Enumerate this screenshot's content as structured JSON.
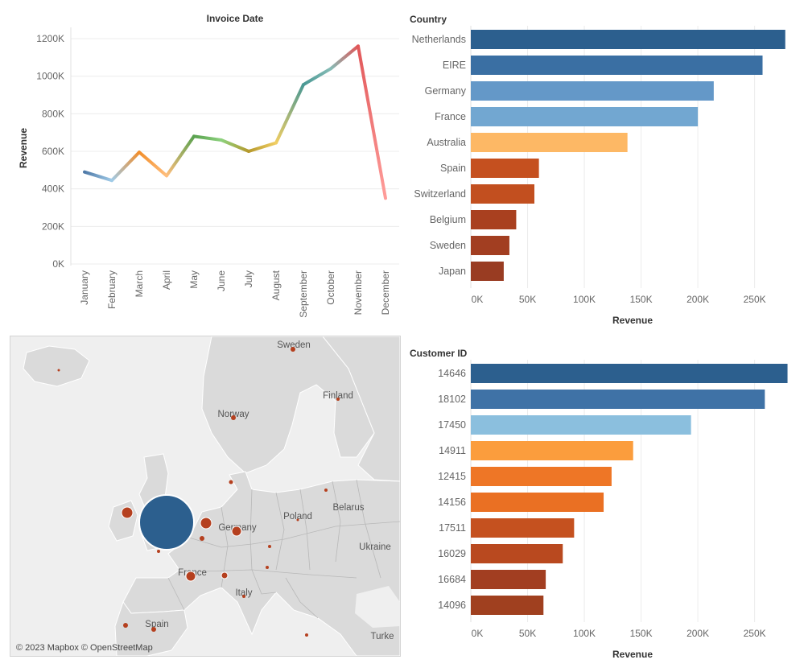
{
  "chart_data": [
    {
      "id": "revenue-by-month",
      "type": "line",
      "title": "Invoice Date",
      "xlabel": "",
      "ylabel": "Revenue",
      "categories": [
        "January",
        "February",
        "March",
        "April",
        "May",
        "June",
        "July",
        "August",
        "September",
        "October",
        "November",
        "December"
      ],
      "values": [
        490000,
        445000,
        595000,
        470000,
        680000,
        660000,
        600000,
        645000,
        955000,
        1040000,
        1160000,
        350000
      ],
      "segment_colors": [
        "#4e79a7",
        "#a0cbe8",
        "#f28e2b",
        "#ffbe7d",
        "#59a14f",
        "#8cd17d",
        "#b6992d",
        "#f1ce63",
        "#499894",
        "#86bcb6",
        "#e15759",
        "#ff9d9a"
      ],
      "ylim": [
        0,
        1200000
      ],
      "yticks": [
        0,
        200000,
        400000,
        600000,
        800000,
        1000000,
        1200000
      ],
      "ytick_labels": [
        "0K",
        "200K",
        "400K",
        "600K",
        "800K",
        "1000K",
        "1200K"
      ],
      "grid": true
    },
    {
      "id": "revenue-by-country",
      "type": "bar",
      "orientation": "horizontal",
      "title": "Country",
      "xlabel": "Revenue",
      "categories": [
        "Netherlands",
        "EIRE",
        "Germany",
        "France",
        "Australia",
        "Spain",
        "Switzerland",
        "Belgium",
        "Sweden",
        "Japan"
      ],
      "values": [
        277000,
        257000,
        214000,
        200000,
        138000,
        60000,
        56000,
        40000,
        34000,
        29000
      ],
      "colors": [
        "#2c5f8e",
        "#3a6fa3",
        "#6498c8",
        "#72a7d1",
        "#fdb865",
        "#c5501f",
        "#c24f1f",
        "#a9401f",
        "#a23e21",
        "#993c22"
      ],
      "xlim": [
        0,
        285000
      ],
      "xticks": [
        0,
        50000,
        100000,
        150000,
        200000,
        250000
      ],
      "xtick_labels": [
        "0K",
        "50K",
        "100K",
        "150K",
        "200K",
        "250K"
      ],
      "grid": true
    },
    {
      "id": "revenue-by-customer",
      "type": "bar",
      "orientation": "horizontal",
      "title": "Customer ID",
      "xlabel": "Revenue",
      "categories": [
        "14646",
        "18102",
        "17450",
        "14911",
        "12415",
        "14156",
        "17511",
        "16029",
        "16684",
        "14096"
      ],
      "values": [
        279000,
        259000,
        194000,
        143000,
        124000,
        117000,
        91000,
        81000,
        66000,
        64000
      ],
      "colors": [
        "#2c5f8e",
        "#3f72a6",
        "#8bbfde",
        "#fb9d3d",
        "#ee7626",
        "#ea7023",
        "#c5511f",
        "#b9491f",
        "#a23e21",
        "#a0401f"
      ],
      "xlim": [
        0,
        285000
      ],
      "xticks": [
        0,
        50000,
        100000,
        150000,
        200000,
        250000
      ],
      "xtick_labels": [
        "0K",
        "50K",
        "100K",
        "150K",
        "200K",
        "250K"
      ],
      "grid": true
    }
  ],
  "map": {
    "labels": [
      "Sweden",
      "Finland",
      "Norway",
      "Belarus",
      "Poland",
      "Germany",
      "Ukraine",
      "France",
      "Italy",
      "Spain",
      "Turke"
    ],
    "attribution": "© 2023 Mapbox © OpenStreetMap",
    "land_color": "#d9d9d9",
    "sea_color": "#efefef",
    "large_marker_color": "#2c5f8e",
    "marker_color": "#b5401f"
  }
}
